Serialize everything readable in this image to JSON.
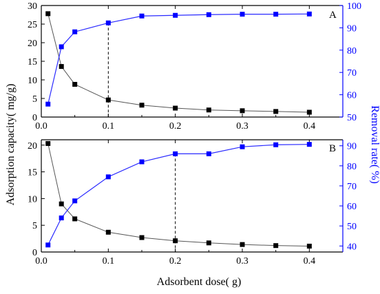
{
  "chart_data": {
    "type": "line",
    "xlabel": "Adsorbent dose( g)",
    "ylabel_left": "Adsorption capacity( mg/g)",
    "ylabel_right": "Removal rate( %)",
    "x_ticks": [
      "0.0",
      "0.1",
      "0.2",
      "0.3",
      "0.4"
    ],
    "panels": [
      {
        "label": "A",
        "xlim": [
          0.0,
          0.45
        ],
        "ylim_left": [
          0,
          30
        ],
        "ylim_right": [
          50,
          100
        ],
        "left_ticks": [
          "0",
          "5",
          "10",
          "15",
          "20",
          "25",
          "30"
        ],
        "right_ticks": [
          "50",
          "60",
          "70",
          "80",
          "90",
          "100"
        ],
        "dashed_x": 0.1,
        "x": [
          0.01,
          0.03,
          0.05,
          0.1,
          0.15,
          0.2,
          0.25,
          0.3,
          0.35,
          0.4
        ],
        "capacity": [
          27.8,
          13.6,
          8.8,
          4.6,
          3.2,
          2.4,
          1.9,
          1.7,
          1.5,
          1.3
        ],
        "removal": [
          55.8,
          81.5,
          88.2,
          92.2,
          95.3,
          95.6,
          95.9,
          96.1,
          96.1,
          96.2
        ],
        "capacity_color": "#000000",
        "removal_color": "#0000ff"
      },
      {
        "label": "B",
        "xlim": [
          0.0,
          0.45
        ],
        "ylim_left": [
          0,
          21
        ],
        "ylim_right": [
          37,
          93
        ],
        "left_ticks": [
          "0",
          "5",
          "10",
          "15",
          "20"
        ],
        "right_ticks": [
          "40",
          "50",
          "60",
          "70",
          "80",
          "90"
        ],
        "dashed_x": 0.2,
        "x": [
          0.01,
          0.03,
          0.05,
          0.1,
          0.15,
          0.2,
          0.25,
          0.3,
          0.35,
          0.4
        ],
        "capacity": [
          20.3,
          9.0,
          6.2,
          3.7,
          2.7,
          2.1,
          1.7,
          1.4,
          1.2,
          1.1
        ],
        "removal": [
          40.5,
          54.0,
          62.5,
          74.5,
          82.0,
          86.0,
          86.0,
          89.5,
          90.5,
          90.7
        ],
        "capacity_color": "#000000",
        "removal_color": "#0000ff"
      }
    ]
  }
}
